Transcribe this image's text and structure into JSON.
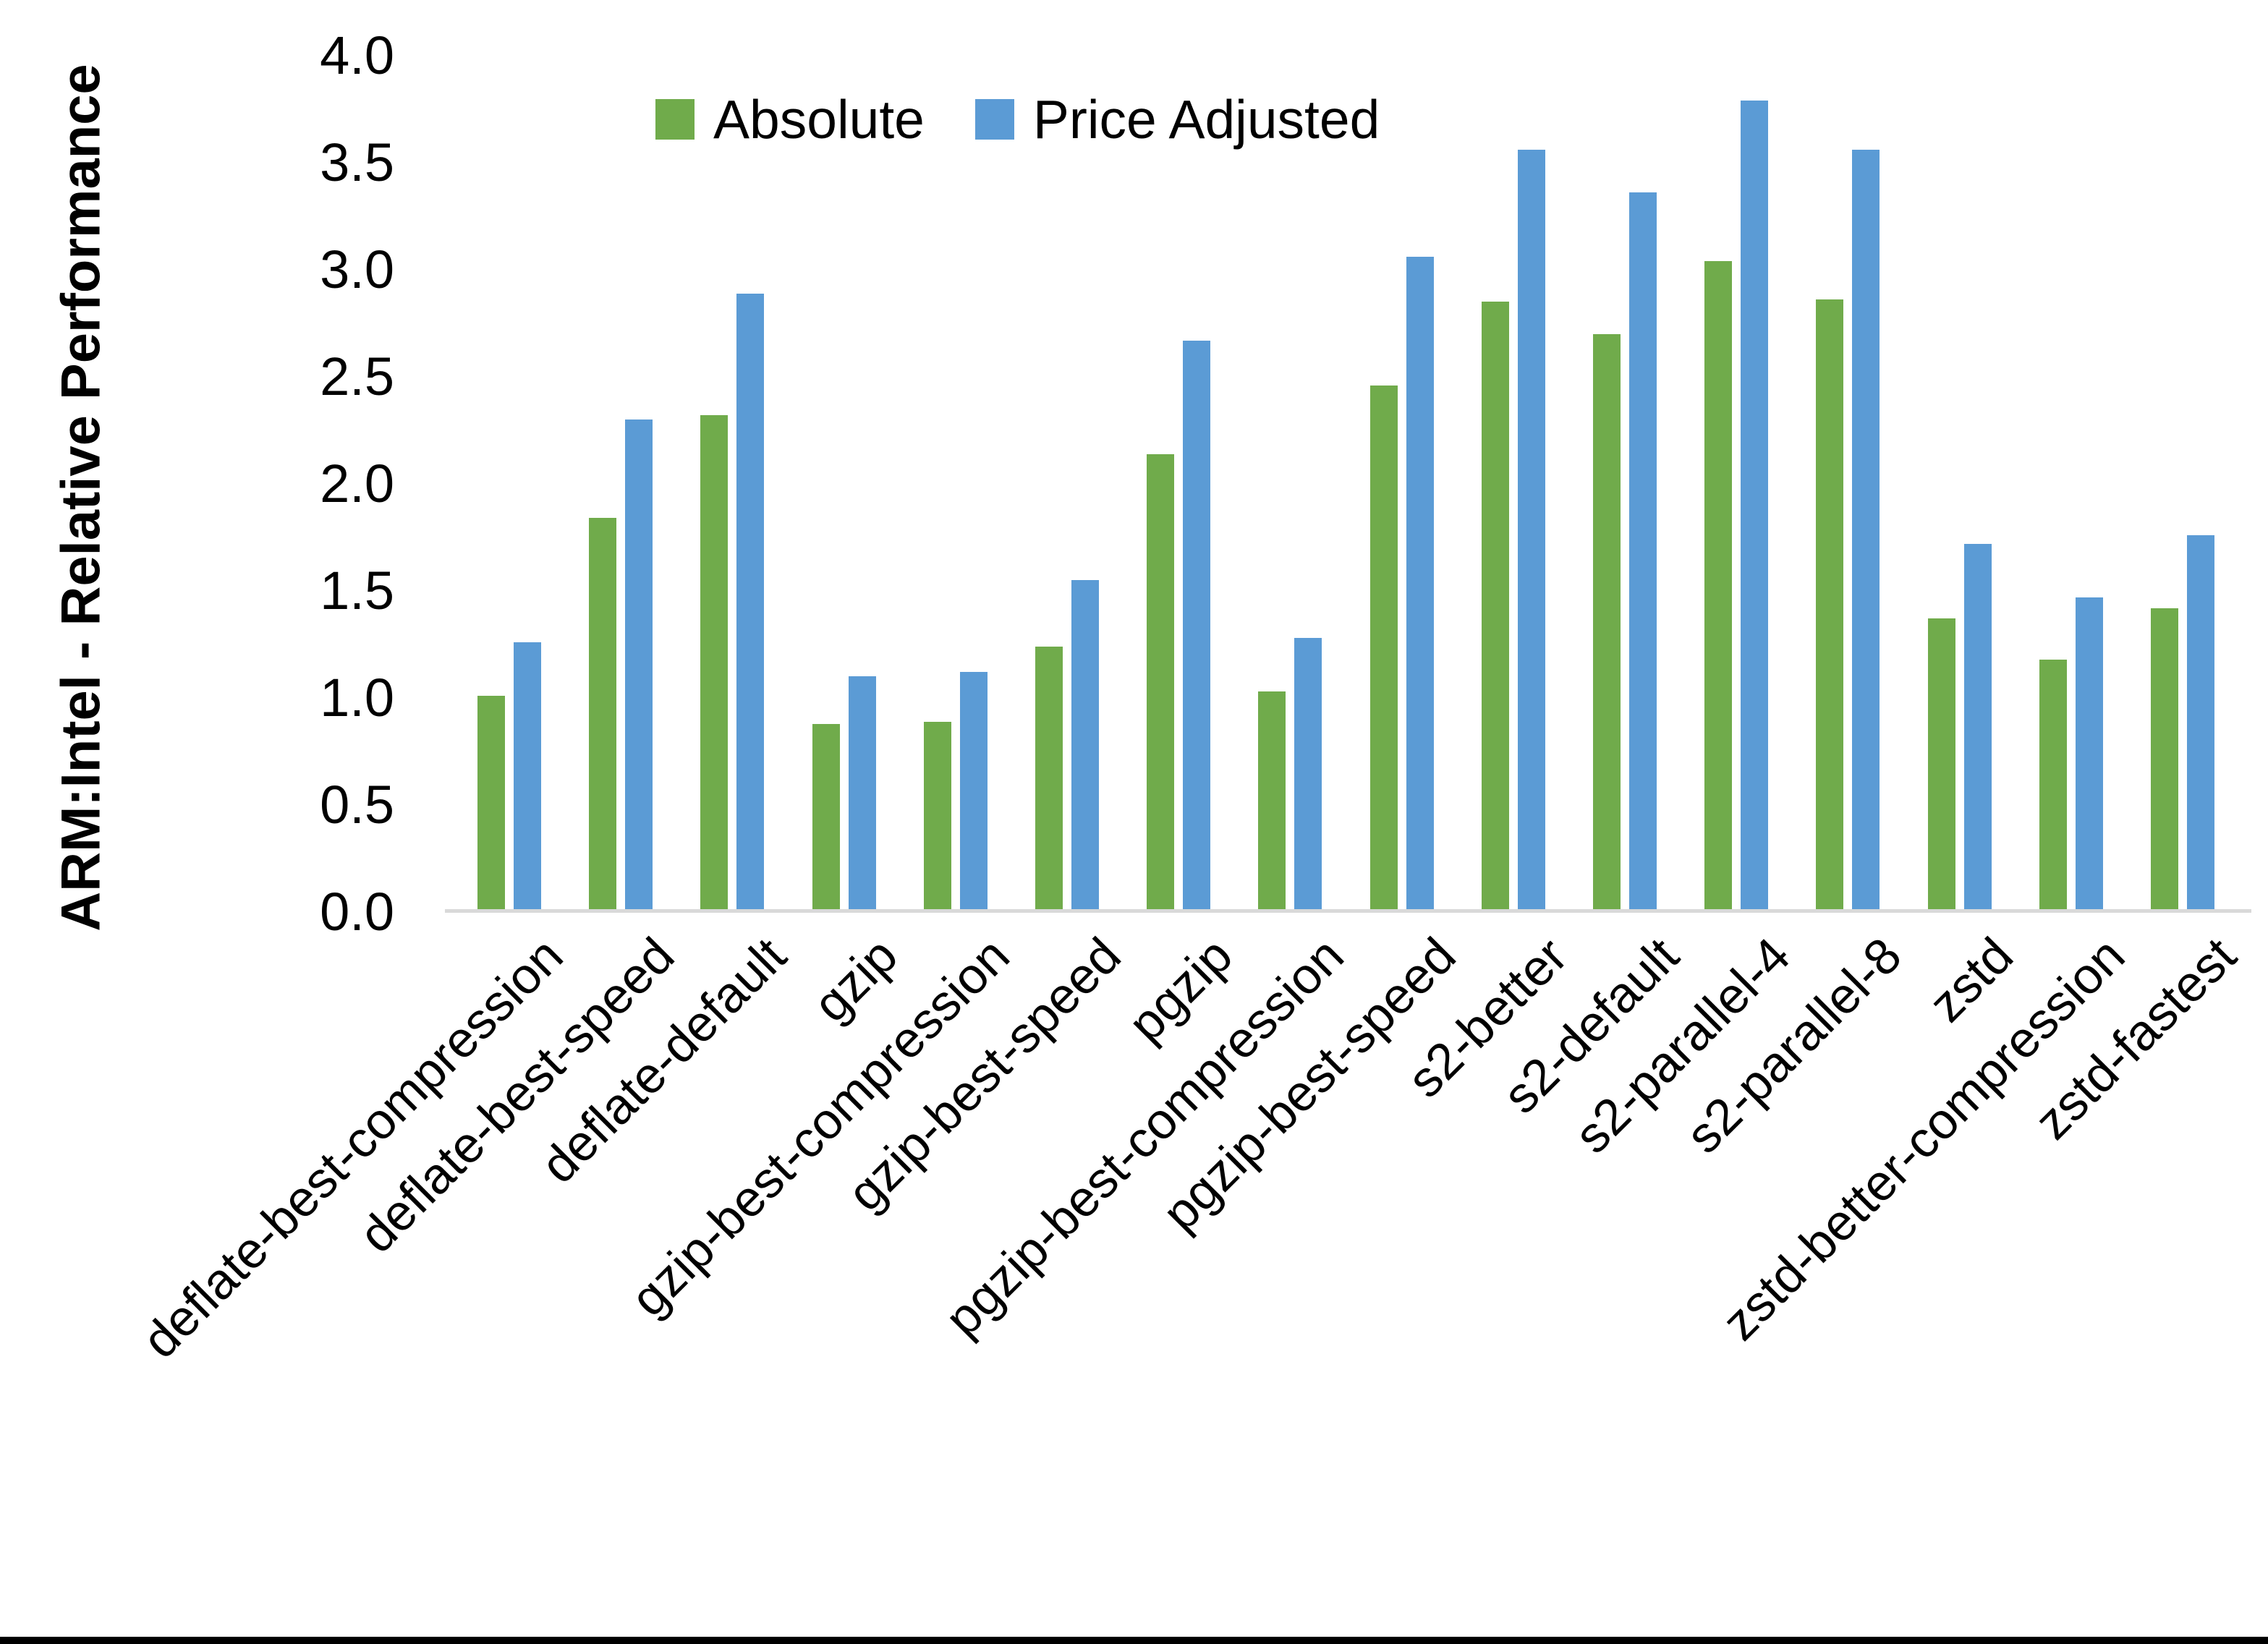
{
  "chart_data": {
    "type": "bar",
    "title": "",
    "xlabel": "",
    "ylabel": "ARM:Intel - Relative Performance",
    "ylim": [
      0.0,
      4.0
    ],
    "ytick_step": 0.5,
    "yticks": [
      "4.0",
      "3.5",
      "3.0",
      "2.5",
      "2.0",
      "1.5",
      "1.0",
      "0.5",
      "0.0"
    ],
    "grid": false,
    "legend_position": "top-center",
    "categories": [
      "deflate-best-compression",
      "deflate-best-speed",
      "deflate-default",
      "gzip",
      "gzip-best-compression",
      "gzip-best-speed",
      "pgzip",
      "pgzip-best-compression",
      "pgzip-best-speed",
      "s2-better",
      "s2-default",
      "s2-parallel-4",
      "s2-parallel-8",
      "zstd",
      "zstd-better-compression",
      "zstd-fastest"
    ],
    "series": [
      {
        "name": "Absolute",
        "color": "#70AB4B",
        "values": [
          1.01,
          1.84,
          2.32,
          0.88,
          0.89,
          1.24,
          2.14,
          1.03,
          2.46,
          2.85,
          2.7,
          3.04,
          2.86,
          1.37,
          1.18,
          1.42
        ]
      },
      {
        "name": "Price Adjusted",
        "color": "#5B9BD5",
        "values": [
          1.26,
          2.3,
          2.89,
          1.1,
          1.12,
          1.55,
          2.67,
          1.28,
          3.06,
          3.56,
          3.36,
          3.79,
          3.56,
          1.72,
          1.47,
          1.76
        ]
      }
    ]
  },
  "colors": {
    "background": "#FFFFFF",
    "axis_line": "#D9D9D9",
    "text": "#000000",
    "bottom_border": "#000000"
  }
}
